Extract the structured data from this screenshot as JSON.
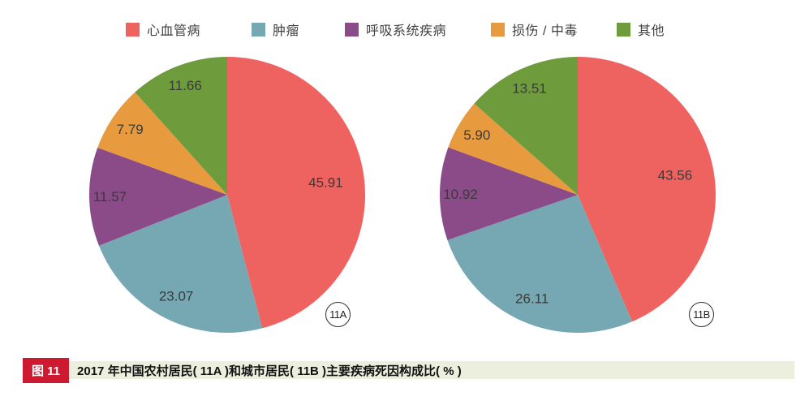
{
  "legend": {
    "items": [
      {
        "label": "心血管病",
        "color": "#EE6360"
      },
      {
        "label": "肿瘤",
        "color": "#76A8B4"
      },
      {
        "label": "呼吸系统疾病",
        "color": "#8A4B88"
      },
      {
        "label": "损伤 / 中毒",
        "color": "#E89B3E"
      },
      {
        "label": "其他",
        "color": "#6E9B3C"
      }
    ]
  },
  "chart_data": [
    {
      "type": "pie",
      "badge": "11A",
      "start_angle_deg": 0,
      "direction": "clockwise",
      "unit": "%",
      "slices": [
        {
          "label": "心血管病",
          "value": 45.91,
          "display": "45.91",
          "color": "#EE6360"
        },
        {
          "label": "肿瘤",
          "value": 23.07,
          "display": "23.07",
          "color": "#76A8B4"
        },
        {
          "label": "呼吸系统疾病",
          "value": 11.57,
          "display": "11.57",
          "color": "#8A4B88"
        },
        {
          "label": "损伤 / 中毒",
          "value": 7.79,
          "display": "7.79",
          "color": "#E89B3E"
        },
        {
          "label": "其他",
          "value": 11.66,
          "display": "11.66",
          "color": "#6E9B3C"
        }
      ]
    },
    {
      "type": "pie",
      "badge": "11B",
      "start_angle_deg": 0,
      "direction": "clockwise",
      "unit": "%",
      "slices": [
        {
          "label": "心血管病",
          "value": 43.56,
          "display": "43.56",
          "color": "#EE6360"
        },
        {
          "label": "肿瘤",
          "value": 26.11,
          "display": "26.11",
          "color": "#76A8B4"
        },
        {
          "label": "呼吸系统疾病",
          "value": 10.92,
          "display": "10.92",
          "color": "#8A4B88"
        },
        {
          "label": "损伤 / 中毒",
          "value": 5.9,
          "display": "5.90",
          "color": "#E89B3E"
        },
        {
          "label": "其他",
          "value": 13.51,
          "display": "13.51",
          "color": "#6E9B3C"
        }
      ]
    }
  ],
  "caption": {
    "badge_label": "图 11",
    "text": "2017 年中国农村居民( 11A )和城市居民( 11B )主要疾病死因构成比( % )",
    "badge_color": "#CE1A30",
    "bar_color": "#EDEFDE"
  }
}
